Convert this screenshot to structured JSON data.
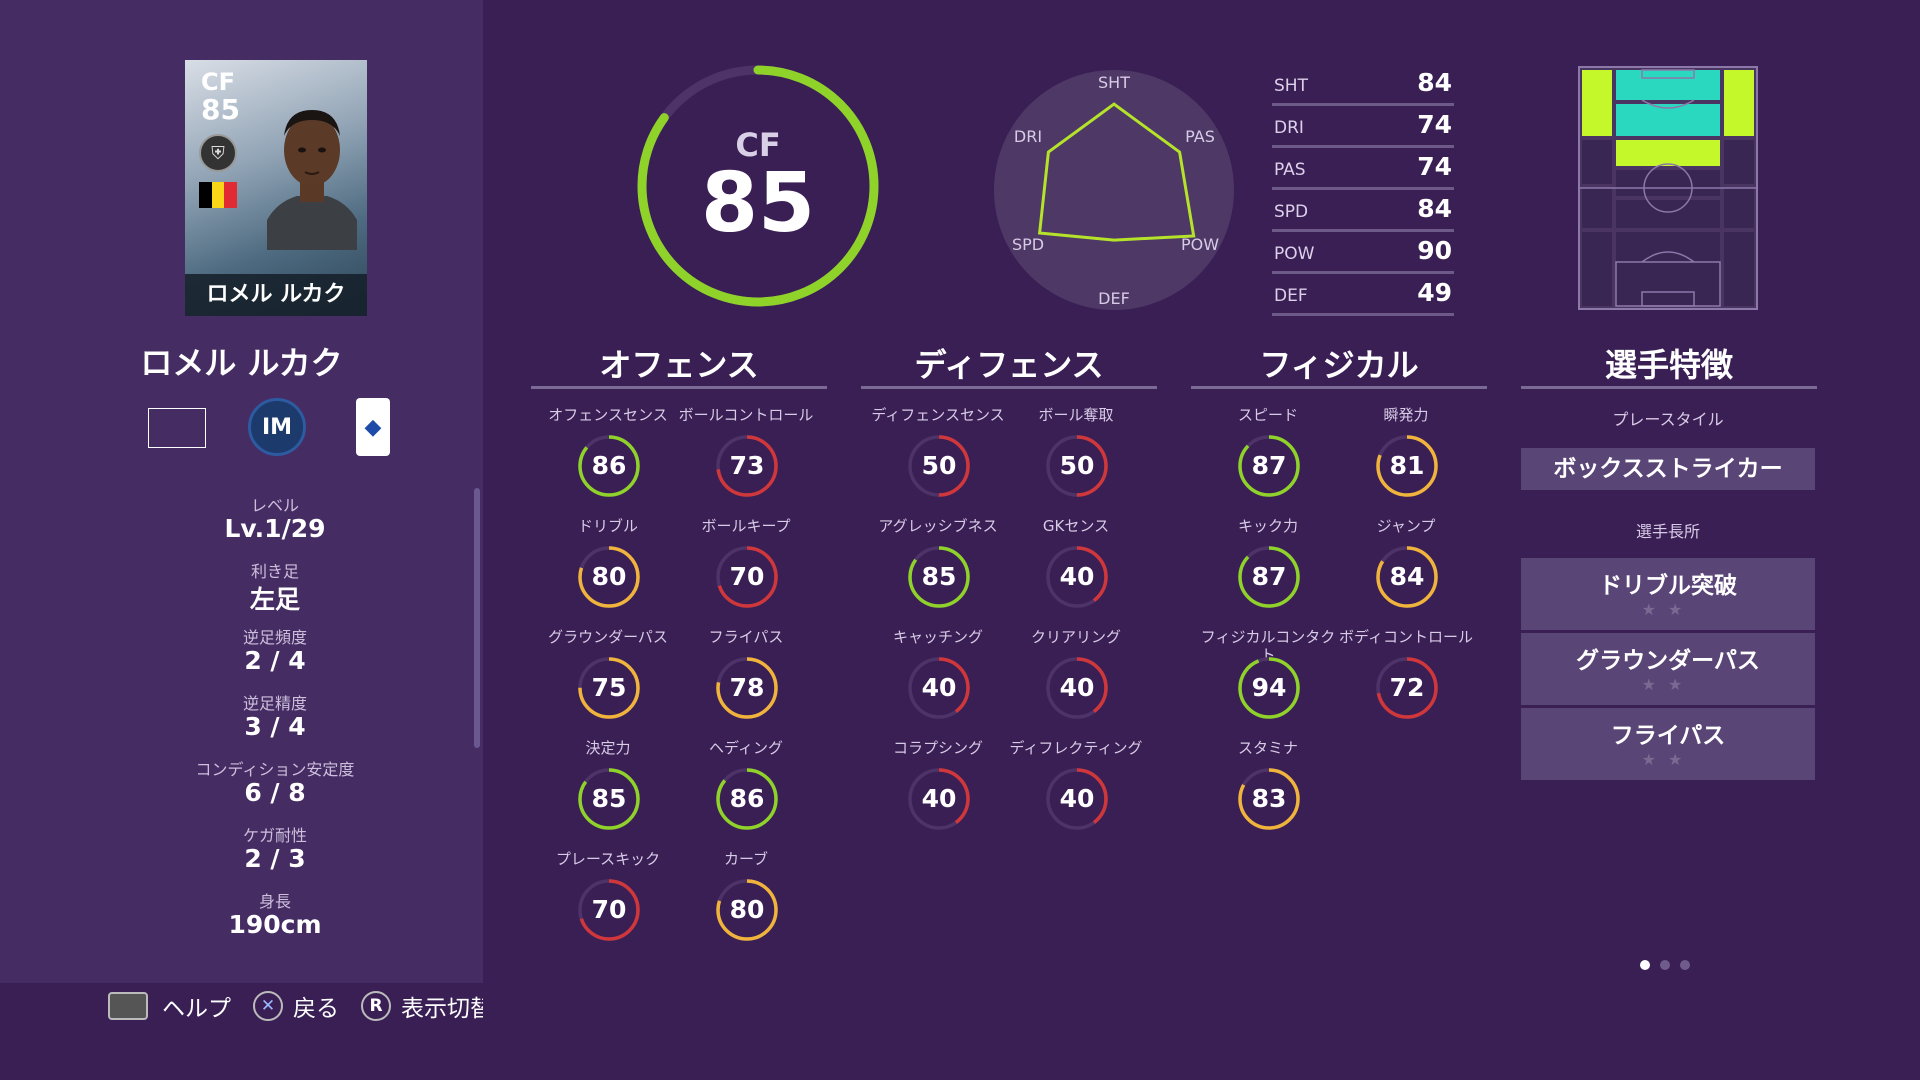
{
  "card": {
    "position": "CF",
    "rating": "85",
    "name": "ロメル ルカク"
  },
  "player": {
    "name": "ロメル ルカク",
    "club_logo": "inter-logo",
    "league_logo": "serie-a-logo",
    "info": [
      {
        "label": "レベル",
        "value": "Lv.1/29"
      },
      {
        "label": "利き足",
        "value": "左足"
      },
      {
        "label": "逆足頻度",
        "value": "2 / 4"
      },
      {
        "label": "逆足精度",
        "value": "3 / 4"
      },
      {
        "label": "コンディション安定度",
        "value": "6 / 8"
      },
      {
        "label": "ケガ耐性",
        "value": "2 / 3"
      },
      {
        "label": "身長",
        "value": "190cm"
      }
    ]
  },
  "footer": {
    "help": "ヘルプ",
    "back": "戻る",
    "toggle": "表示切替",
    "r_button": "R"
  },
  "overall": {
    "position": "CF",
    "rating": "85",
    "rating_value": 85
  },
  "radar": {
    "labels": [
      "SHT",
      "PAS",
      "POW",
      "DEF",
      "SPD",
      "DRI"
    ],
    "values": [
      84,
      74,
      90,
      49,
      84,
      74
    ]
  },
  "six_stats": [
    {
      "label": "SHT",
      "value": "84"
    },
    {
      "label": "DRI",
      "value": "74"
    },
    {
      "label": "PAS",
      "value": "74"
    },
    {
      "label": "SPD",
      "value": "84"
    },
    {
      "label": "POW",
      "value": "90"
    },
    {
      "label": "DEF",
      "value": "49"
    }
  ],
  "columns": {
    "offense": {
      "title": "オフェンス",
      "stats": [
        {
          "label": "オフェンスセンス",
          "value": 86
        },
        {
          "label": "ボールコントロール",
          "value": 73
        },
        {
          "label": "ドリブル",
          "value": 80
        },
        {
          "label": "ボールキープ",
          "value": 70
        },
        {
          "label": "グラウンダーパス",
          "value": 75
        },
        {
          "label": "フライパス",
          "value": 78
        },
        {
          "label": "決定力",
          "value": 85
        },
        {
          "label": "ヘディング",
          "value": 86
        },
        {
          "label": "プレースキック",
          "value": 70
        },
        {
          "label": "カーブ",
          "value": 80
        }
      ]
    },
    "defense": {
      "title": "ディフェンス",
      "stats": [
        {
          "label": "ディフェンスセンス",
          "value": 50
        },
        {
          "label": "ボール奪取",
          "value": 50
        },
        {
          "label": "アグレッシブネス",
          "value": 85
        },
        {
          "label": "GKセンス",
          "value": 40
        },
        {
          "label": "キャッチング",
          "value": 40
        },
        {
          "label": "クリアリング",
          "value": 40
        },
        {
          "label": "コラプシング",
          "value": 40
        },
        {
          "label": "ディフレクティング",
          "value": 40
        }
      ]
    },
    "physical": {
      "title": "フィジカル",
      "stats": [
        {
          "label": "スピード",
          "value": 87
        },
        {
          "label": "瞬発力",
          "value": 81
        },
        {
          "label": "キック力",
          "value": 87
        },
        {
          "label": "ジャンプ",
          "value": 84
        },
        {
          "label": "フィジカルコンタクト",
          "value": 94
        },
        {
          "label": "ボディコントロール",
          "value": 72
        },
        {
          "label": "スタミナ",
          "value": 83
        }
      ]
    }
  },
  "traits": {
    "title": "選手特徴",
    "playstyle_label": "プレースタイル",
    "playstyle": "ボックスストライカー",
    "strengths_label": "選手長所",
    "strengths": [
      {
        "name": "ドリブル突破",
        "stars": "★★"
      },
      {
        "name": "グラウンダーパス",
        "stars": "★★"
      },
      {
        "name": "フライパス",
        "stars": "★★"
      }
    ]
  },
  "pager": {
    "pages": 3,
    "current": 1
  },
  "colors": {
    "green": "#8fd22a",
    "yellow": "#f0b43c",
    "red": "#d0373a",
    "pitch_active": "#c5f82a",
    "pitch_cyan": "#2ad8c0"
  }
}
